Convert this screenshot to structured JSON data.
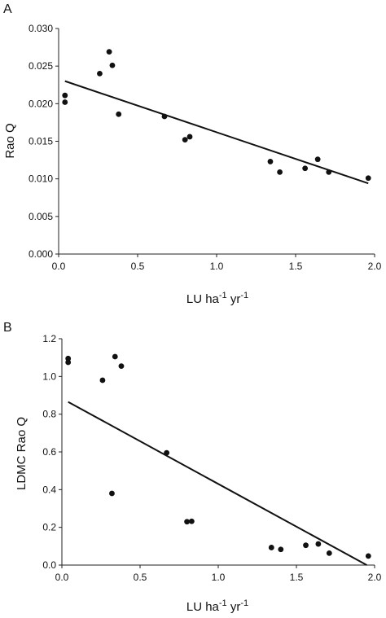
{
  "chart_data": [
    {
      "type": "scatter",
      "panel_label": "A",
      "xlabel": {
        "base": "LU ha",
        "exp1": "-1",
        "mid": " yr",
        "exp2": "-1"
      },
      "ylabel": "Rao Q",
      "xlim": [
        0,
        2.0
      ],
      "ylim": [
        0,
        0.03
      ],
      "xticks": [
        "0.0",
        "0.5",
        "1.0",
        "1.5",
        "2.0"
      ],
      "yticks": [
        "0.000",
        "0.005",
        "0.010",
        "0.015",
        "0.020",
        "0.025",
        "0.030"
      ],
      "grid": false,
      "points": [
        {
          "x": 0.04,
          "y": 0.0211
        },
        {
          "x": 0.04,
          "y": 0.0202
        },
        {
          "x": 0.26,
          "y": 0.024
        },
        {
          "x": 0.32,
          "y": 0.0269
        },
        {
          "x": 0.34,
          "y": 0.0251
        },
        {
          "x": 0.38,
          "y": 0.0186
        },
        {
          "x": 0.67,
          "y": 0.0183
        },
        {
          "x": 0.8,
          "y": 0.0152
        },
        {
          "x": 0.83,
          "y": 0.0156
        },
        {
          "x": 1.34,
          "y": 0.0123
        },
        {
          "x": 1.4,
          "y": 0.0109
        },
        {
          "x": 1.56,
          "y": 0.0114
        },
        {
          "x": 1.64,
          "y": 0.0126
        },
        {
          "x": 1.71,
          "y": 0.0109
        },
        {
          "x": 1.96,
          "y": 0.0101
        }
      ],
      "trendline": {
        "x": [
          0.04,
          1.96
        ],
        "y": [
          0.023,
          0.0094
        ]
      }
    },
    {
      "type": "scatter",
      "panel_label": "B",
      "xlabel": {
        "base": "LU ha",
        "exp1": "-1",
        "mid": " yr",
        "exp2": "-1"
      },
      "ylabel": "LDMC Rao Q",
      "xlim": [
        0,
        2.0
      ],
      "ylim": [
        0,
        1.2
      ],
      "xticks": [
        "0.0",
        "0.5",
        "1.0",
        "1.5",
        "2.0"
      ],
      "yticks": [
        "0.0",
        "0.2",
        "0.4",
        "0.6",
        "0.8",
        "1.0",
        "1.2"
      ],
      "grid": false,
      "points": [
        {
          "x": 0.04,
          "y": 1.095
        },
        {
          "x": 0.04,
          "y": 1.075
        },
        {
          "x": 0.26,
          "y": 0.98
        },
        {
          "x": 0.32,
          "y": 0.38
        },
        {
          "x": 0.34,
          "y": 1.105
        },
        {
          "x": 0.38,
          "y": 1.055
        },
        {
          "x": 0.67,
          "y": 0.595
        },
        {
          "x": 0.8,
          "y": 0.23
        },
        {
          "x": 0.83,
          "y": 0.232
        },
        {
          "x": 1.34,
          "y": 0.093
        },
        {
          "x": 1.4,
          "y": 0.083
        },
        {
          "x": 1.56,
          "y": 0.105
        },
        {
          "x": 1.64,
          "y": 0.112
        },
        {
          "x": 1.71,
          "y": 0.063
        },
        {
          "x": 1.96,
          "y": 0.048
        }
      ],
      "trendline": {
        "x": [
          0.04,
          1.95
        ],
        "y": [
          0.865,
          0.0
        ]
      }
    }
  ]
}
